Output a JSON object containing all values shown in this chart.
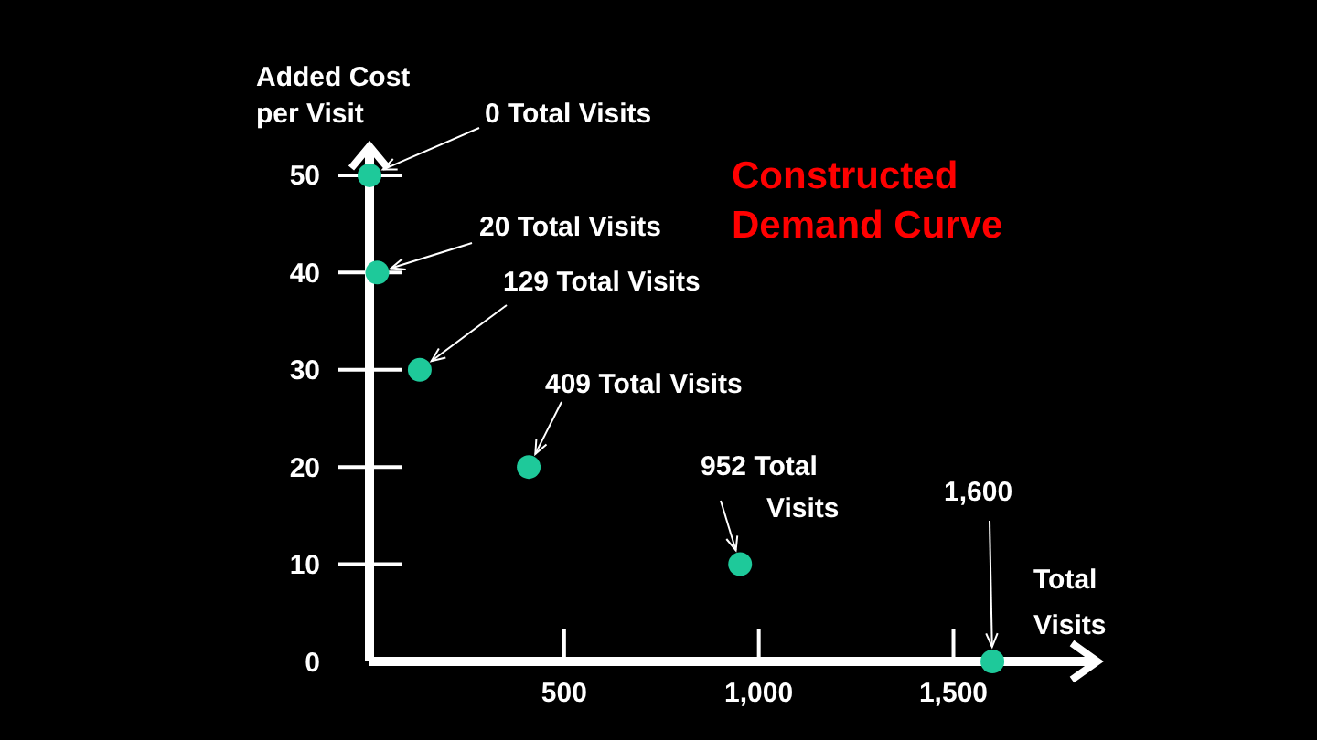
{
  "chart_data": {
    "type": "scatter",
    "title": "Constructed Demand Curve",
    "xlabel": "Total Visits",
    "ylabel": "Added Cost per Visit",
    "x": [
      0,
      20,
      129,
      409,
      952,
      1600
    ],
    "series": [
      {
        "color": "#1ec99a",
        "values": [
          50,
          40,
          30,
          20,
          10,
          0
        ]
      }
    ],
    "xlim": [
      0,
      1870
    ],
    "ylim": [
      0,
      53
    ],
    "xticks": [
      {
        "value": 500,
        "label": "500"
      },
      {
        "value": 1000,
        "label": "1,000"
      },
      {
        "value": 1500,
        "label": "1,500"
      }
    ],
    "yticks": [
      0,
      10,
      20,
      30,
      40,
      50
    ],
    "marker": "circle",
    "grid": false,
    "annotations": [
      {
        "text": "0 Total Visits",
        "x": 0,
        "y": 50
      },
      {
        "text": "20 Total Visits",
        "x": 20,
        "y": 40
      },
      {
        "text": "129 Total Visits",
        "x": 129,
        "y": 30
      },
      {
        "text": "409 Total Visits",
        "x": 409,
        "y": 20
      },
      {
        "text": "952 Total Visits",
        "x": 952,
        "y": 10
      },
      {
        "text": "1,600",
        "x": 1600,
        "y": 0
      }
    ]
  }
}
